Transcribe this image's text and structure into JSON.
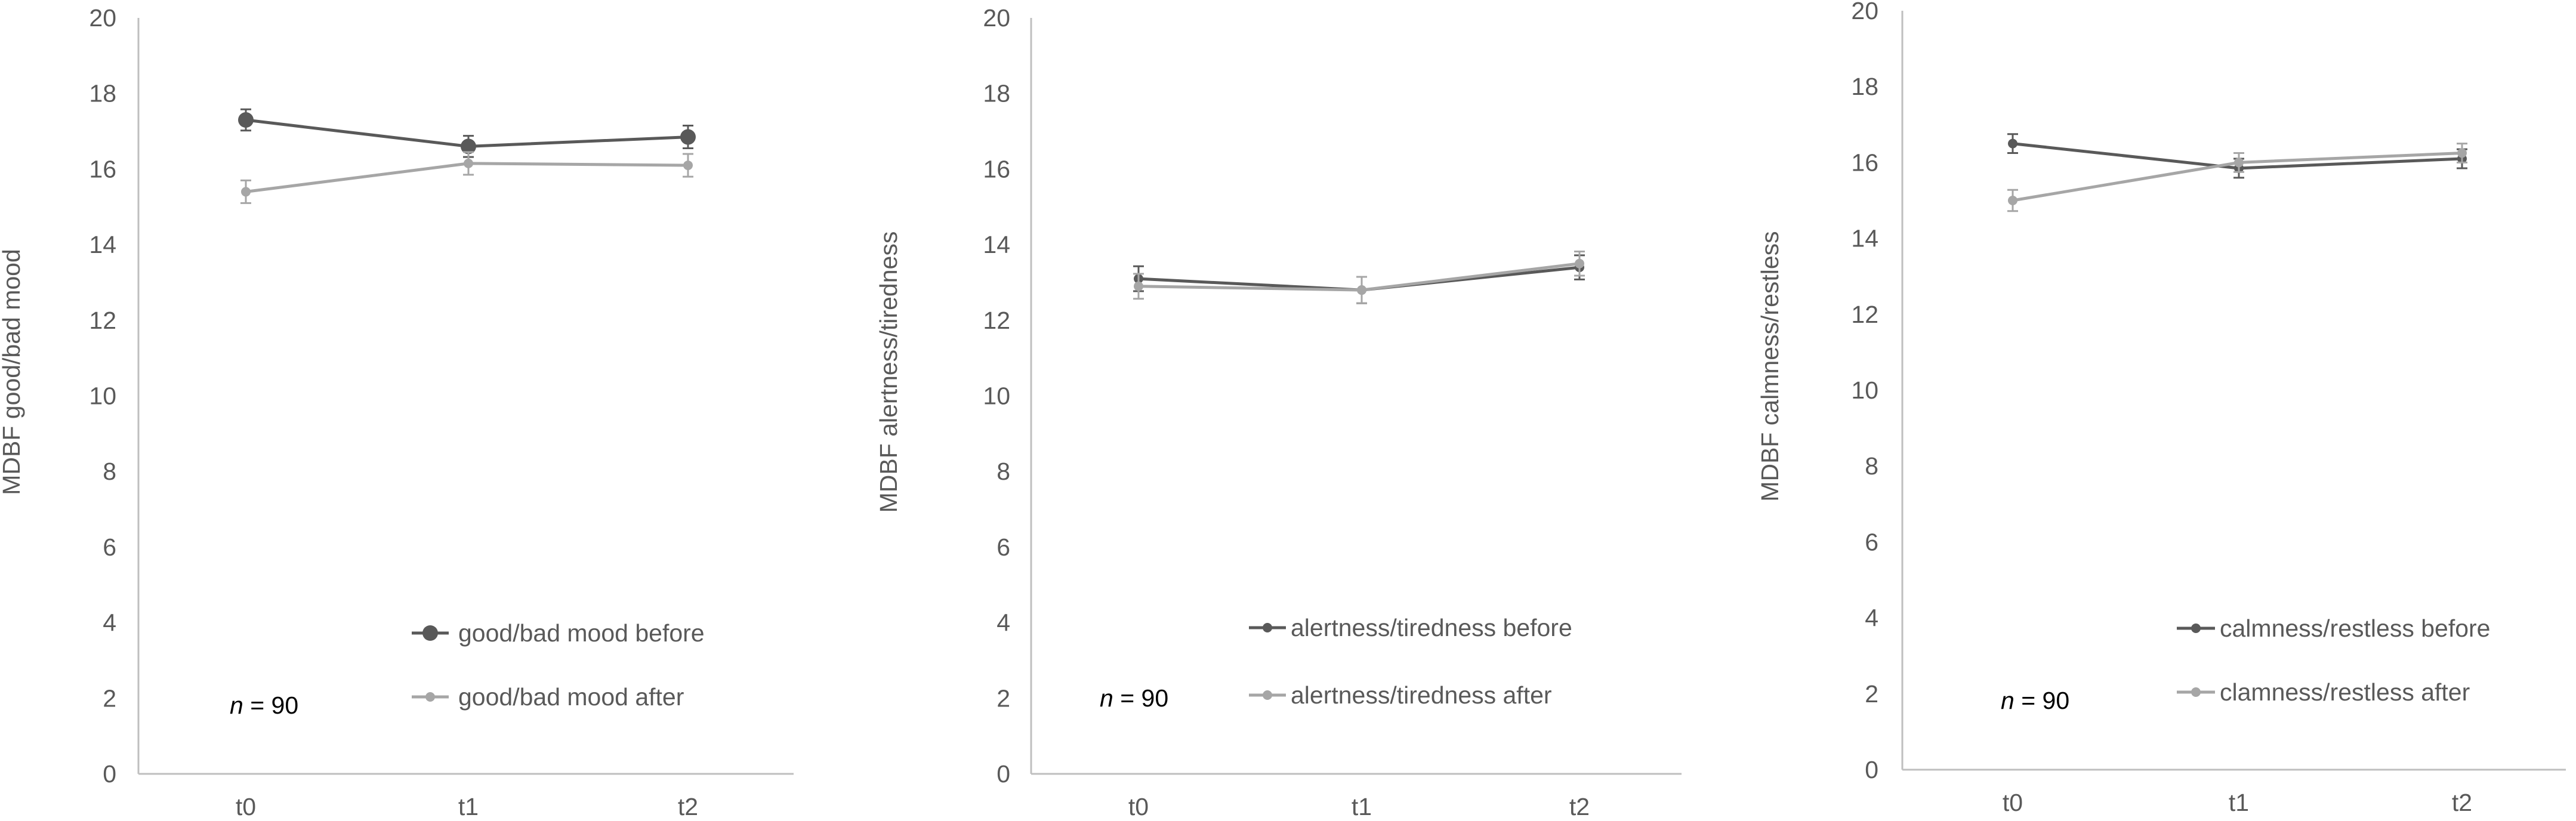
{
  "chart_data": [
    {
      "type": "line",
      "categories": [
        "t0",
        "t1",
        "t2"
      ],
      "ylabel": "MDBF good/bad mood",
      "ylim": [
        0,
        20
      ],
      "yticks": [
        0,
        2,
        4,
        6,
        8,
        10,
        12,
        14,
        16,
        18,
        20
      ],
      "annotation": {
        "italic": "n",
        "text": " = 90"
      },
      "legend_position": "bottom-right",
      "series": [
        {
          "name": "good/bad mood before",
          "values": [
            17.3,
            16.6,
            16.85
          ],
          "errors": [
            0.28,
            0.28,
            0.3
          ],
          "color": "#595959",
          "marker": "large"
        },
        {
          "name": "good/bad mood after",
          "values": [
            15.4,
            16.15,
            16.1
          ],
          "errors": [
            0.3,
            0.3,
            0.3
          ],
          "color": "#a6a6a6",
          "marker": "small"
        }
      ]
    },
    {
      "type": "line",
      "categories": [
        "t0",
        "t1",
        "t2"
      ],
      "ylabel": "MDBF alertness/tiredness",
      "ylim": [
        0,
        20
      ],
      "yticks": [
        0,
        2,
        4,
        6,
        8,
        10,
        12,
        14,
        16,
        18,
        20
      ],
      "annotation": {
        "italic": "n",
        "text": " = 90"
      },
      "legend_position": "bottom-right",
      "series": [
        {
          "name": "alertness/tiredness before",
          "values": [
            13.1,
            12.8,
            13.4
          ],
          "errors": [
            0.33,
            0.35,
            0.32
          ],
          "color": "#595959",
          "marker": "small"
        },
        {
          "name": "alertness/tiredness after",
          "values": [
            12.9,
            12.8,
            13.5
          ],
          "errors": [
            0.33,
            0.35,
            0.32
          ],
          "color": "#a6a6a6",
          "marker": "small"
        }
      ]
    },
    {
      "type": "line",
      "categories": [
        "t0",
        "t1",
        "t2"
      ],
      "ylabel": "MDBF calmness/restless",
      "ylim": [
        0,
        20
      ],
      "yticks": [
        0,
        2,
        4,
        6,
        8,
        10,
        12,
        14,
        16,
        18,
        20
      ],
      "annotation": {
        "italic": "n",
        "text": " = 90"
      },
      "legend_position": "bottom-right",
      "series": [
        {
          "name": "calmness/restless before",
          "values": [
            16.5,
            15.85,
            16.1
          ],
          "errors": [
            0.25,
            0.25,
            0.25
          ],
          "color": "#595959",
          "marker": "small"
        },
        {
          "name": "clamness/restless after",
          "values": [
            15.0,
            16.0,
            16.25
          ],
          "errors": [
            0.28,
            0.25,
            0.25
          ],
          "color": "#a6a6a6",
          "marker": "small"
        }
      ]
    }
  ]
}
